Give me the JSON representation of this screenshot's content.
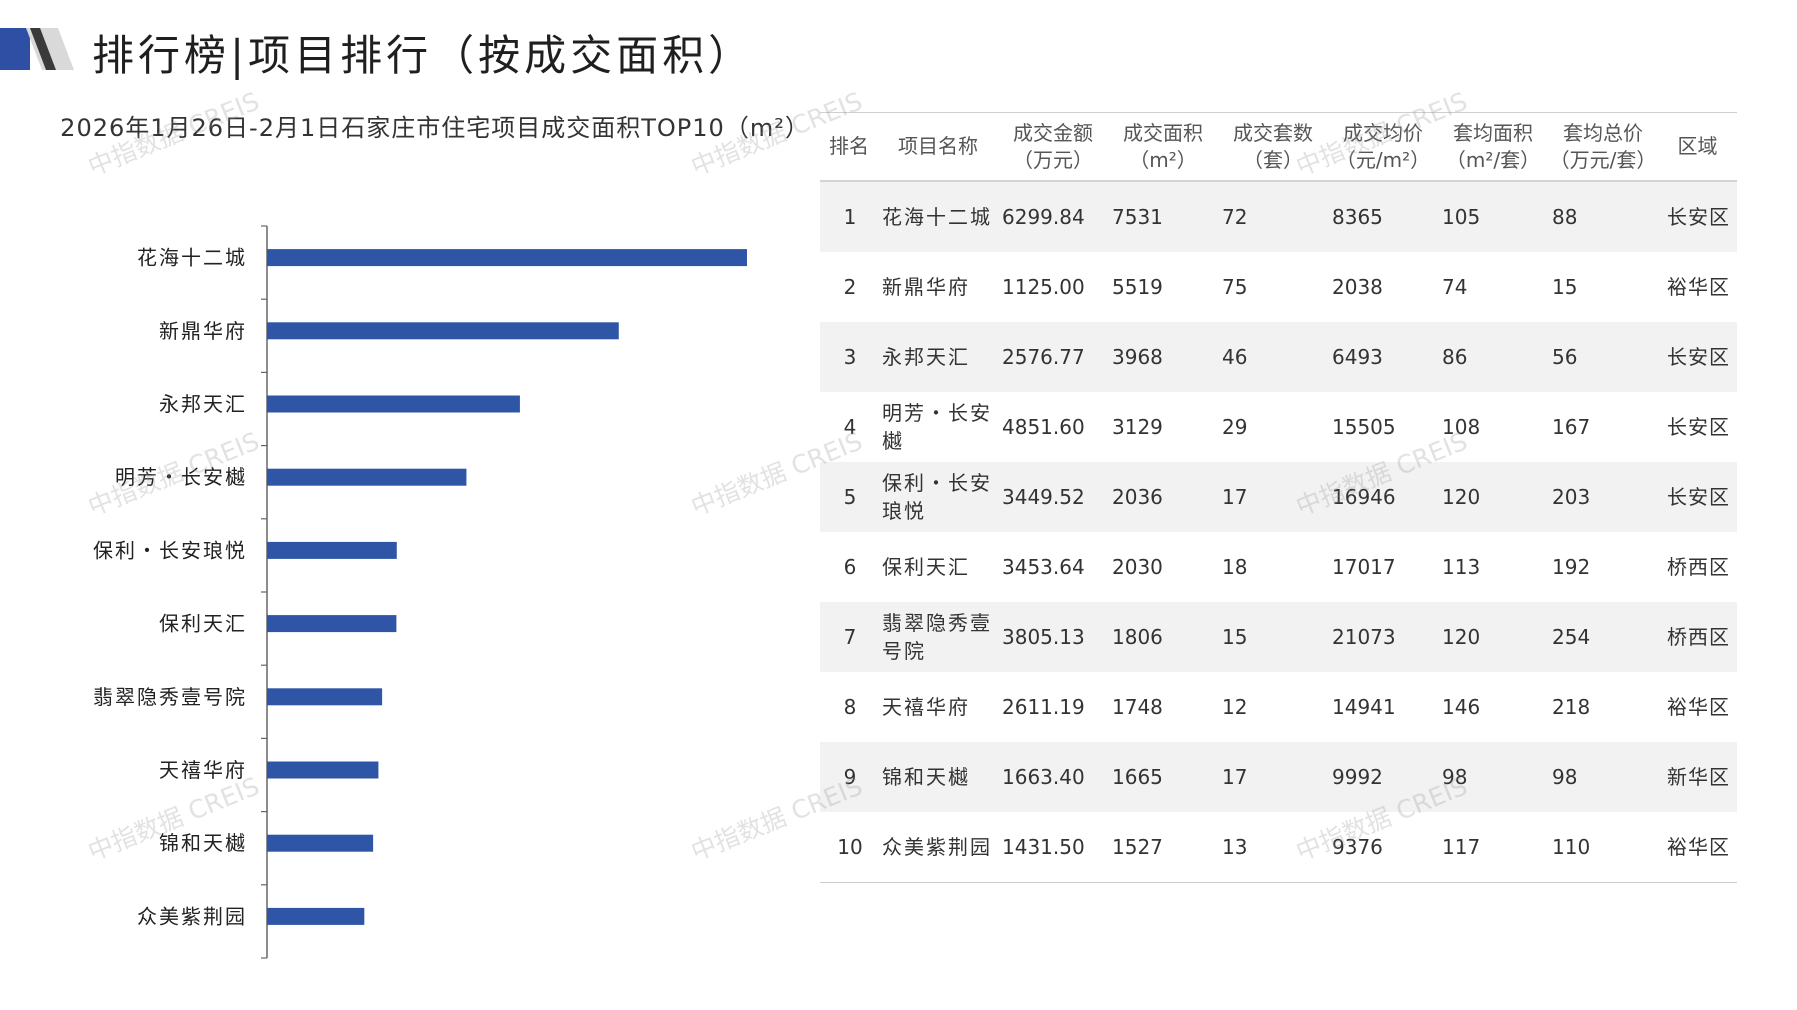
{
  "page_title": "排行榜|项目排行（按成交面积）",
  "chart_data": {
    "type": "bar",
    "orientation": "horizontal",
    "title": "2026年1月26日-2月1日石家庄市住宅项目成交面积TOP10（m²）",
    "categories": [
      "花海十二城",
      "新鼎华府",
      "永邦天汇",
      "明芳・长安樾",
      "保利・长安琅悦",
      "保利天汇",
      "翡翠隐秀壹号院",
      "天禧华府",
      "锦和天樾",
      "众美紫荆园"
    ],
    "values": [
      7531,
      5519,
      3968,
      3129,
      2036,
      2030,
      1806,
      1748,
      1665,
      1527
    ],
    "xlim": [
      0,
      7531
    ],
    "bar_color": "#2e55a6",
    "grid": false,
    "legend": "none"
  },
  "table": {
    "headers": [
      "排名",
      "项目名称",
      "成交金额\n（万元）",
      "成交面积\n（m²）",
      "成交套数\n（套）",
      "成交均价\n（元/m²）",
      "套均面积\n（m²/套）",
      "套均总价\n（万元/套）",
      "区域"
    ],
    "rows": [
      [
        "1",
        "花海十二城",
        "6299.84",
        "7531",
        "72",
        "8365",
        "105",
        "88",
        "长安区"
      ],
      [
        "2",
        "新鼎华府",
        "1125.00",
        "5519",
        "75",
        "2038",
        "74",
        "15",
        "裕华区"
      ],
      [
        "3",
        "永邦天汇",
        "2576.77",
        "3968",
        "46",
        "6493",
        "86",
        "56",
        "长安区"
      ],
      [
        "4",
        "明芳・长安樾",
        "4851.60",
        "3129",
        "29",
        "15505",
        "108",
        "167",
        "长安区"
      ],
      [
        "5",
        "保利・长安琅悦",
        "3449.52",
        "2036",
        "17",
        "16946",
        "120",
        "203",
        "长安区"
      ],
      [
        "6",
        "保利天汇",
        "3453.64",
        "2030",
        "18",
        "17017",
        "113",
        "192",
        "桥西区"
      ],
      [
        "7",
        "翡翠隐秀壹号院",
        "3805.13",
        "1806",
        "15",
        "21073",
        "120",
        "254",
        "桥西区"
      ],
      [
        "8",
        "天禧华府",
        "2611.19",
        "1748",
        "12",
        "14941",
        "146",
        "218",
        "裕华区"
      ],
      [
        "9",
        "锦和天樾",
        "1663.40",
        "1665",
        "17",
        "9992",
        "98",
        "98",
        "新华区"
      ],
      [
        "10",
        "众美紫荆园",
        "1431.50",
        "1527",
        "13",
        "9376",
        "117",
        "110",
        "裕华区"
      ]
    ]
  },
  "watermark": "中指数据 CREIS"
}
